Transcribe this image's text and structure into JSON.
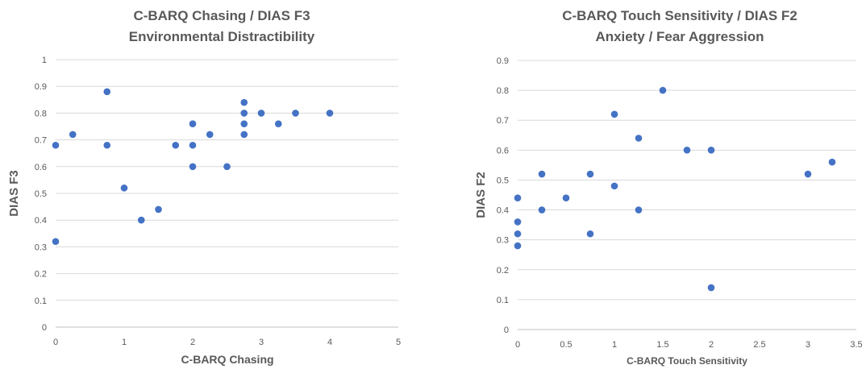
{
  "chart_data": [
    {
      "type": "scatter",
      "title_lines": [
        "C-BARQ Chasing / DIAS F3",
        "Environmental Distractibility"
      ],
      "xlabel": "C-BARQ Chasing",
      "ylabel": "DIAS F3",
      "xlim": [
        0,
        5
      ],
      "ylim": [
        0,
        1
      ],
      "x_ticks": [
        0,
        1,
        2,
        3,
        4,
        5
      ],
      "y_ticks": [
        0,
        0.1,
        0.2,
        0.3,
        0.4,
        0.5,
        0.6,
        0.7,
        0.8,
        0.9,
        1
      ],
      "grid": "horizontal",
      "marker_color": "#4472C4",
      "points": [
        {
          "x": 0,
          "y": 0.68
        },
        {
          "x": 0,
          "y": 0.32
        },
        {
          "x": 0.25,
          "y": 0.72
        },
        {
          "x": 0.75,
          "y": 0.88
        },
        {
          "x": 0.75,
          "y": 0.68
        },
        {
          "x": 1,
          "y": 0.52
        },
        {
          "x": 1.25,
          "y": 0.4
        },
        {
          "x": 1.5,
          "y": 0.44
        },
        {
          "x": 1.75,
          "y": 0.68
        },
        {
          "x": 2,
          "y": 0.76
        },
        {
          "x": 2,
          "y": 0.68
        },
        {
          "x": 2,
          "y": 0.6
        },
        {
          "x": 2.25,
          "y": 0.72
        },
        {
          "x": 2.5,
          "y": 0.6
        },
        {
          "x": 2.75,
          "y": 0.84
        },
        {
          "x": 2.75,
          "y": 0.8
        },
        {
          "x": 2.75,
          "y": 0.76
        },
        {
          "x": 2.75,
          "y": 0.72
        },
        {
          "x": 3,
          "y": 0.8
        },
        {
          "x": 3.25,
          "y": 0.76
        },
        {
          "x": 3.5,
          "y": 0.8
        },
        {
          "x": 4,
          "y": 0.8
        }
      ]
    },
    {
      "type": "scatter",
      "title_lines": [
        "C-BARQ Touch Sensitivity / DIAS F2",
        "Anxiety / Fear Aggression"
      ],
      "xlabel": "C-BARQ Touch Sensitivity",
      "ylabel": "DIAS F2",
      "xlim": [
        0,
        3.5
      ],
      "ylim": [
        0,
        0.9
      ],
      "x_ticks": [
        0,
        0.5,
        1,
        1.5,
        2,
        2.5,
        3,
        3.5
      ],
      "y_ticks": [
        0,
        0.1,
        0.2,
        0.3,
        0.4,
        0.5,
        0.6,
        0.7,
        0.8,
        0.9
      ],
      "grid": "horizontal",
      "marker_color": "#4472C4",
      "points": [
        {
          "x": 0,
          "y": 0.44
        },
        {
          "x": 0,
          "y": 0.36
        },
        {
          "x": 0,
          "y": 0.32
        },
        {
          "x": 0,
          "y": 0.28
        },
        {
          "x": 0.25,
          "y": 0.52
        },
        {
          "x": 0.25,
          "y": 0.4
        },
        {
          "x": 0.5,
          "y": 0.44
        },
        {
          "x": 0.75,
          "y": 0.52
        },
        {
          "x": 0.75,
          "y": 0.32
        },
        {
          "x": 1,
          "y": 0.72
        },
        {
          "x": 1,
          "y": 0.48
        },
        {
          "x": 1.25,
          "y": 0.64
        },
        {
          "x": 1.25,
          "y": 0.4
        },
        {
          "x": 1.5,
          "y": 0.8
        },
        {
          "x": 1.75,
          "y": 0.6
        },
        {
          "x": 2,
          "y": 0.6
        },
        {
          "x": 2,
          "y": 0.14
        },
        {
          "x": 3,
          "y": 0.52
        },
        {
          "x": 3.25,
          "y": 0.56
        }
      ]
    }
  ]
}
